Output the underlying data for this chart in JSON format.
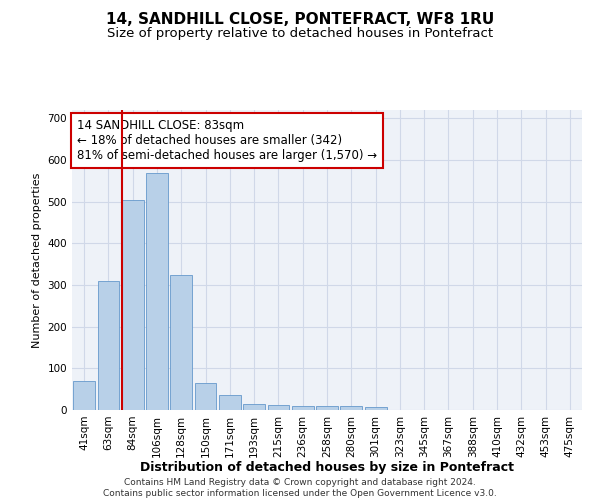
{
  "title": "14, SANDHILL CLOSE, PONTEFRACT, WF8 1RU",
  "subtitle": "Size of property relative to detached houses in Pontefract",
  "xlabel": "Distribution of detached houses by size in Pontefract",
  "ylabel": "Number of detached properties",
  "bar_labels": [
    "41sqm",
    "63sqm",
    "84sqm",
    "106sqm",
    "128sqm",
    "150sqm",
    "171sqm",
    "193sqm",
    "215sqm",
    "236sqm",
    "258sqm",
    "280sqm",
    "301sqm",
    "323sqm",
    "345sqm",
    "367sqm",
    "388sqm",
    "410sqm",
    "432sqm",
    "453sqm",
    "475sqm"
  ],
  "bar_values": [
    70,
    310,
    505,
    570,
    325,
    65,
    35,
    15,
    12,
    10,
    10,
    10,
    7,
    0,
    0,
    0,
    0,
    0,
    0,
    0,
    0
  ],
  "bar_color": "#b8d0e8",
  "bar_edge_color": "#6699cc",
  "vline_color": "#cc0000",
  "annotation_text": "14 SANDHILL CLOSE: 83sqm\n← 18% of detached houses are smaller (342)\n81% of semi-detached houses are larger (1,570) →",
  "annotation_box_color": "#ffffff",
  "annotation_box_edge": "#cc0000",
  "ylim": [
    0,
    720
  ],
  "yticks": [
    0,
    100,
    200,
    300,
    400,
    500,
    600,
    700
  ],
  "grid_color": "#d0d8e8",
  "bg_color": "#eef2f8",
  "footer": "Contains HM Land Registry data © Crown copyright and database right 2024.\nContains public sector information licensed under the Open Government Licence v3.0.",
  "title_fontsize": 11,
  "subtitle_fontsize": 9.5,
  "xlabel_fontsize": 9,
  "ylabel_fontsize": 8,
  "tick_fontsize": 7.5,
  "annotation_fontsize": 8.5,
  "footer_fontsize": 6.5
}
